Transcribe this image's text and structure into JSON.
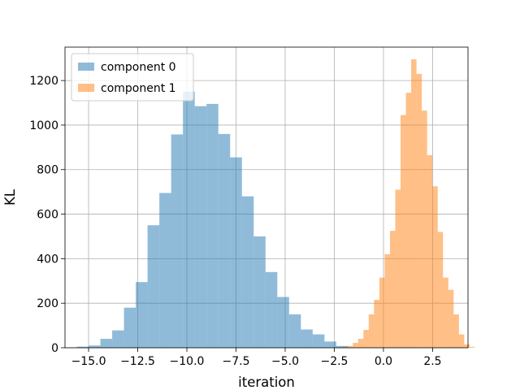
{
  "chart_data": {
    "type": "bar",
    "title": "",
    "xlabel": "iteration",
    "ylabel": "KL",
    "xlim": [
      -16.2,
      4.3
    ],
    "ylim": [
      0,
      1350
    ],
    "x_ticks": [
      -15.0,
      -12.5,
      -10.0,
      -7.5,
      -5.0,
      -2.5,
      0.0,
      2.5
    ],
    "x_tick_labels": [
      "−15.0",
      "−12.5",
      "−10.0",
      "−7.5",
      "−5.0",
      "−2.5",
      "0.0",
      "2.5"
    ],
    "y_ticks": [
      0,
      200,
      400,
      600,
      800,
      1000,
      1200
    ],
    "y_tick_labels": [
      "0",
      "200",
      "400",
      "600",
      "800",
      "1000",
      "1200"
    ],
    "grid": true,
    "legend_position": "top-left",
    "series": [
      {
        "name": "component 0",
        "color": "#1f77b4",
        "alpha": 0.5,
        "bin_start": -15.6,
        "bin_width": 0.6,
        "values": [
          5,
          10,
          40,
          78,
          180,
          295,
          550,
          695,
          958,
          1150,
          1085,
          1095,
          960,
          855,
          680,
          500,
          340,
          228,
          150,
          82,
          60,
          28,
          8
        ]
      },
      {
        "name": "component 1",
        "color": "#ff7f0e",
        "alpha": 0.5,
        "bin_start": -2.1,
        "bin_width": 0.27,
        "values": [
          3,
          8,
          22,
          40,
          80,
          150,
          215,
          315,
          420,
          525,
          710,
          1045,
          1145,
          1295,
          1230,
          1065,
          865,
          725,
          520,
          315,
          260,
          150,
          60,
          15,
          4
        ]
      }
    ]
  }
}
